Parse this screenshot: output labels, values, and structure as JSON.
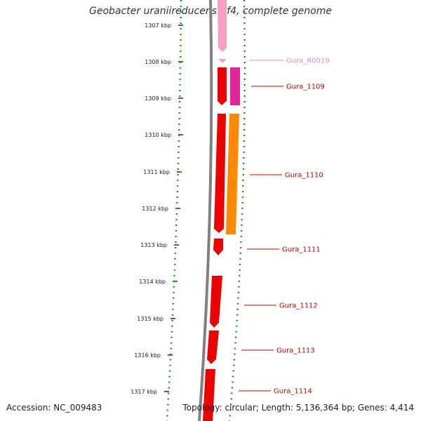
{
  "title": "Geobacter uraniireducens Rf4, complete genome",
  "footer": {
    "accession": "Accession: NC_009483",
    "summary": "Topology: circular; Length: 5,136,364 bp; Genes: 4,414"
  },
  "colors": {
    "backbone": "#808080",
    "dots": "#2a8a2a",
    "cds": "#ee0000",
    "rna": "#f79dc6",
    "rna_label": "#f08ab8",
    "magenta": "#e0249a",
    "orange": "#ff8800",
    "label": "#cc0000"
  },
  "ticks": [
    "1307 kbp",
    "1308 kbp",
    "1309 kbp",
    "1310 kbp",
    "1311 kbp",
    "1312 kbp",
    "1313 kbp",
    "1314 kbp",
    "1315 kbp",
    "1316 kbp",
    "1317 kbp"
  ],
  "gene_labels": [
    {
      "text": "Gura_R0019",
      "kind": "rna"
    },
    {
      "text": "Gura_1109",
      "kind": "cds"
    },
    {
      "text": "Gura_1110",
      "kind": "cds"
    },
    {
      "text": "Gura_1111",
      "kind": "cds"
    },
    {
      "text": "Gura_1112",
      "kind": "cds"
    },
    {
      "text": "Gura_1113",
      "kind": "cds"
    },
    {
      "text": "Gura_1114",
      "kind": "cds"
    }
  ]
}
